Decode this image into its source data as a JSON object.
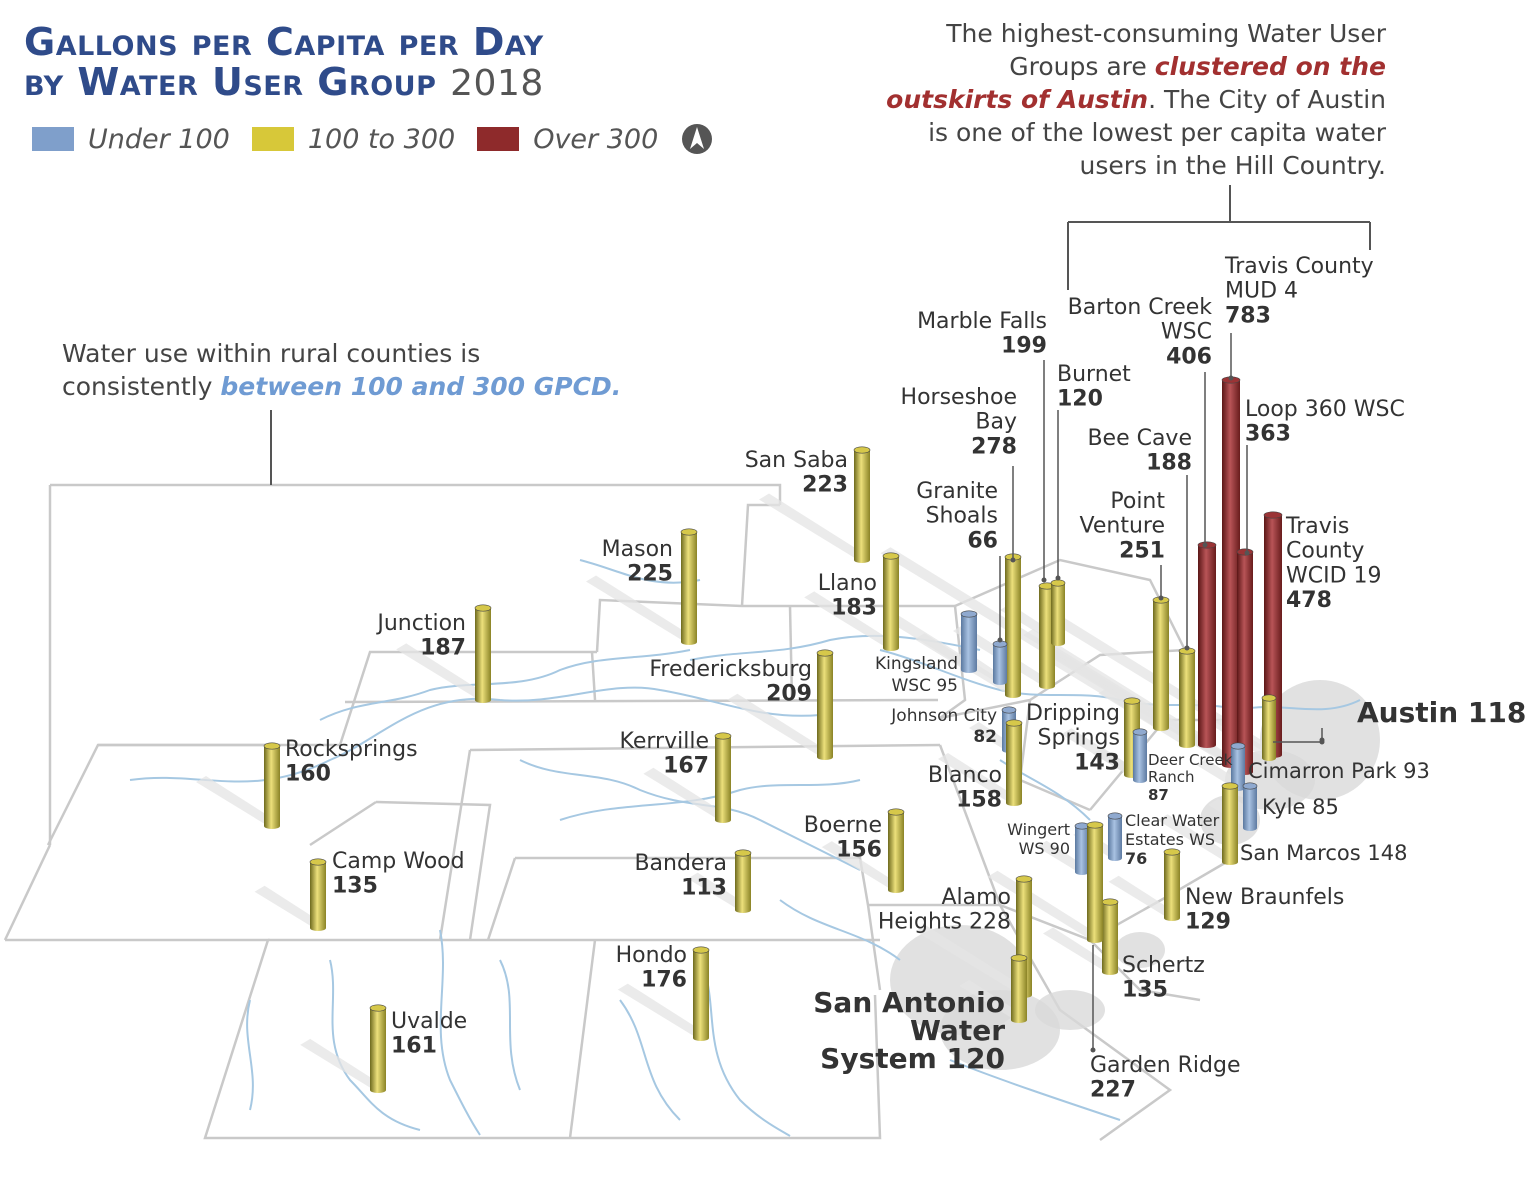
{
  "title": {
    "line1": "Gallons per Capita per Day",
    "line2": "by Water User Group",
    "year": "2018"
  },
  "legend": [
    {
      "label": "Under 100",
      "color": "#7f9fcb"
    },
    {
      "label": "100 to 300",
      "color": "#d7c839"
    },
    {
      "label": "Over 300",
      "color": "#8e2a2b"
    }
  ],
  "colors": {
    "low": "#7f9fcb",
    "mid": "#d7c839",
    "high": "#8e2a2b",
    "river": "#9cc2de",
    "border": "#c8c8c8"
  },
  "north_arrow": "north-arrow-icon",
  "notes": {
    "top_right": {
      "part1": "The highest-consuming Water User Groups are ",
      "highlight": "clustered on the outskirts of Austin",
      "part2": ". The City of Austin is one of the lowest per capita water users in the Hill Country."
    },
    "rural": {
      "part1": "Water use within rural counties is consistently ",
      "highlight": "between 100 and 300 GPCD."
    }
  },
  "chart_data": {
    "type": "map",
    "unit": "gallons per capita per day",
    "series": [
      {
        "name": "San Saba",
        "value": 223
      },
      {
        "name": "Mason",
        "value": 225
      },
      {
        "name": "Junction",
        "value": 187
      },
      {
        "name": "Rocksprings",
        "value": 160
      },
      {
        "name": "Camp Wood",
        "value": 135
      },
      {
        "name": "Uvalde",
        "value": 161
      },
      {
        "name": "Llano",
        "value": 183
      },
      {
        "name": "Fredericksburg",
        "value": 209
      },
      {
        "name": "Kerrville",
        "value": 167
      },
      {
        "name": "Bandera",
        "value": 113
      },
      {
        "name": "Hondo",
        "value": 176
      },
      {
        "name": "Boerne",
        "value": 156
      },
      {
        "name": "Horseshoe Bay",
        "value": 278
      },
      {
        "name": "Marble Falls",
        "value": 199
      },
      {
        "name": "Burnet",
        "value": 120
      },
      {
        "name": "Granite Shoals",
        "value": 66
      },
      {
        "name": "Kingsland WSC",
        "value": 95
      },
      {
        "name": "Johnson City",
        "value": 82
      },
      {
        "name": "Blanco",
        "value": 158
      },
      {
        "name": "Dripping Springs",
        "value": 143
      },
      {
        "name": "Barton Creek WSC",
        "value": 406
      },
      {
        "name": "Travis County MUD 4",
        "value": 783
      },
      {
        "name": "Loop 360 WSC",
        "value": 363
      },
      {
        "name": "Bee Cave",
        "value": 188
      },
      {
        "name": "Point Venture",
        "value": 251
      },
      {
        "name": "Travis County WCID 19",
        "value": 478
      },
      {
        "name": "Austin",
        "value": 118
      },
      {
        "name": "Deer Creek Ranch",
        "value": 87
      },
      {
        "name": "Cimarron Park",
        "value": 93
      },
      {
        "name": "Kyle",
        "value": 85
      },
      {
        "name": "San Marcos",
        "value": 148
      },
      {
        "name": "Clear Water Estates WS",
        "value": 76
      },
      {
        "name": "Wingert WS",
        "value": 90
      },
      {
        "name": "New Braunfels",
        "value": 129
      },
      {
        "name": "Alamo Heights",
        "value": 228
      },
      {
        "name": "Schertz",
        "value": 135
      },
      {
        "name": "San Antonio Water System",
        "value": 120
      },
      {
        "name": "Garden Ridge",
        "value": 227
      }
    ]
  }
}
